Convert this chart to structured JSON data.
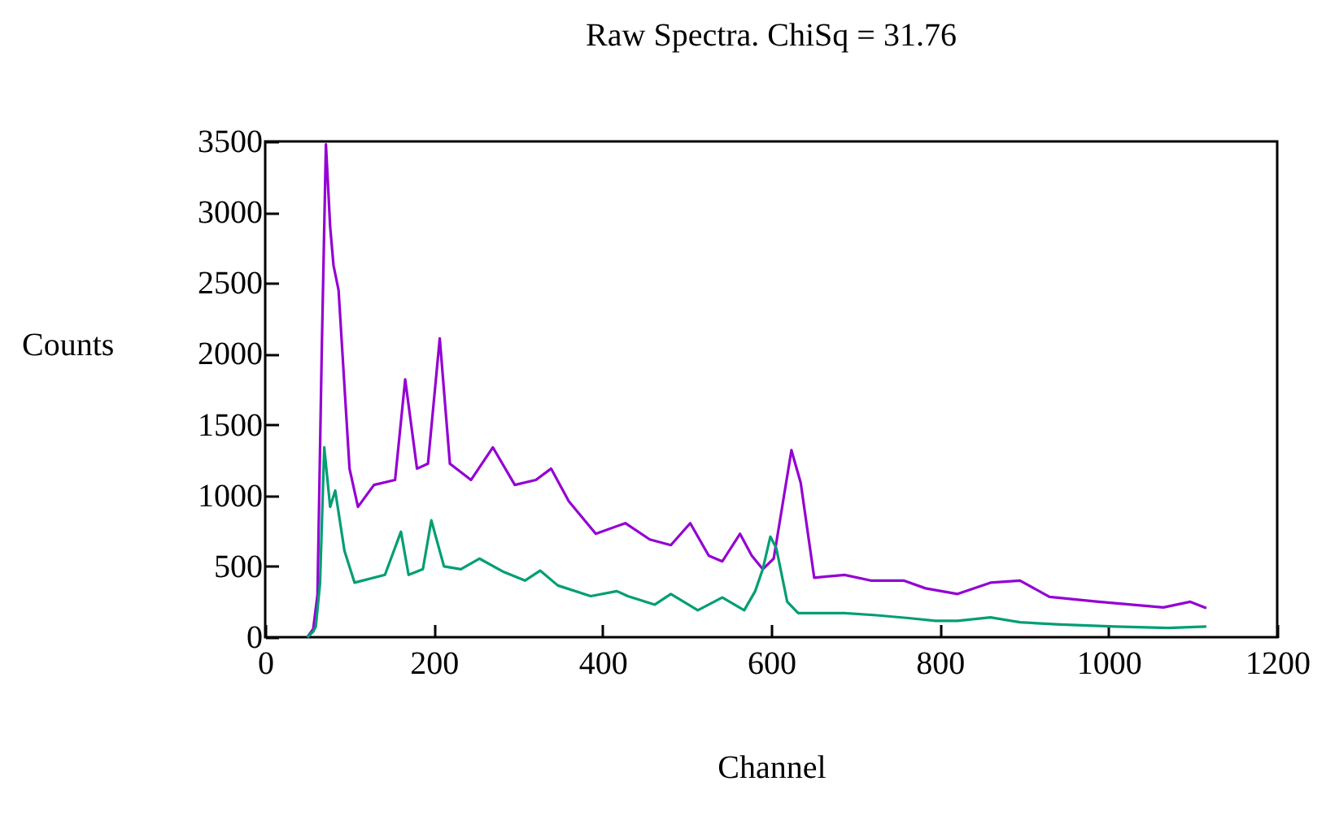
{
  "chart_data": {
    "type": "line",
    "title": "Raw Spectra. ChiSq = 31.76",
    "xlabel": "Channel",
    "ylabel": "Counts",
    "xlim": [
      0,
      1200
    ],
    "xticks": [
      0,
      200,
      400,
      600,
      800,
      1000,
      1200
    ],
    "ylim": [
      0,
      3500
    ],
    "yticks": [
      0,
      500,
      1000,
      1500,
      2000,
      2500,
      3000,
      3500
    ],
    "grid": false,
    "series": [
      {
        "color": "#9400d3",
        "x": [
          50,
          57,
          62,
          67,
          72,
          77,
          81,
          87,
          100,
          110,
          129,
          154,
          166,
          180,
          193,
          207,
          219,
          244,
          270,
          296,
          321,
          339,
          360,
          392,
          427,
          456,
          481,
          504,
          526,
          542,
          563,
          577,
          590,
          603,
          624,
          635,
          651,
          687,
          718,
          757,
          783,
          821,
          860,
          895,
          930,
          988,
          1065,
          1097,
          1116
        ],
        "values": [
          0,
          60,
          300,
          2000,
          3480,
          2900,
          2625,
          2450,
          1190,
          920,
          1075,
          1110,
          1820,
          1190,
          1225,
          2110,
          1225,
          1110,
          1340,
          1075,
          1110,
          1190,
          960,
          730,
          805,
          690,
          650,
          805,
          575,
          535,
          730,
          575,
          480,
          555,
          1320,
          1090,
          420,
          440,
          400,
          400,
          345,
          305,
          385,
          400,
          285,
          250,
          210,
          250,
          205
        ]
      },
      {
        "color": "#009e73",
        "x": [
          50,
          57,
          60,
          65,
          70,
          77,
          83,
          94,
          106,
          142,
          161,
          170,
          187,
          197,
          212,
          232,
          254,
          283,
          308,
          326,
          347,
          386,
          417,
          430,
          462,
          481,
          513,
          542,
          568,
          581,
          590,
          599,
          606,
          619,
          632,
          687,
          725,
          763,
          795,
          821,
          860,
          895,
          943,
          1007,
          1071,
          1116
        ],
        "values": [
          0,
          40,
          75,
          380,
          1340,
          920,
          1035,
          610,
          385,
          440,
          745,
          440,
          480,
          825,
          500,
          480,
          555,
          460,
          400,
          470,
          365,
          290,
          325,
          290,
          230,
          305,
          190,
          280,
          190,
          325,
          480,
          710,
          630,
          250,
          170,
          170,
          155,
          135,
          115,
          115,
          140,
          105,
          90,
          75,
          65,
          75
        ]
      }
    ]
  }
}
